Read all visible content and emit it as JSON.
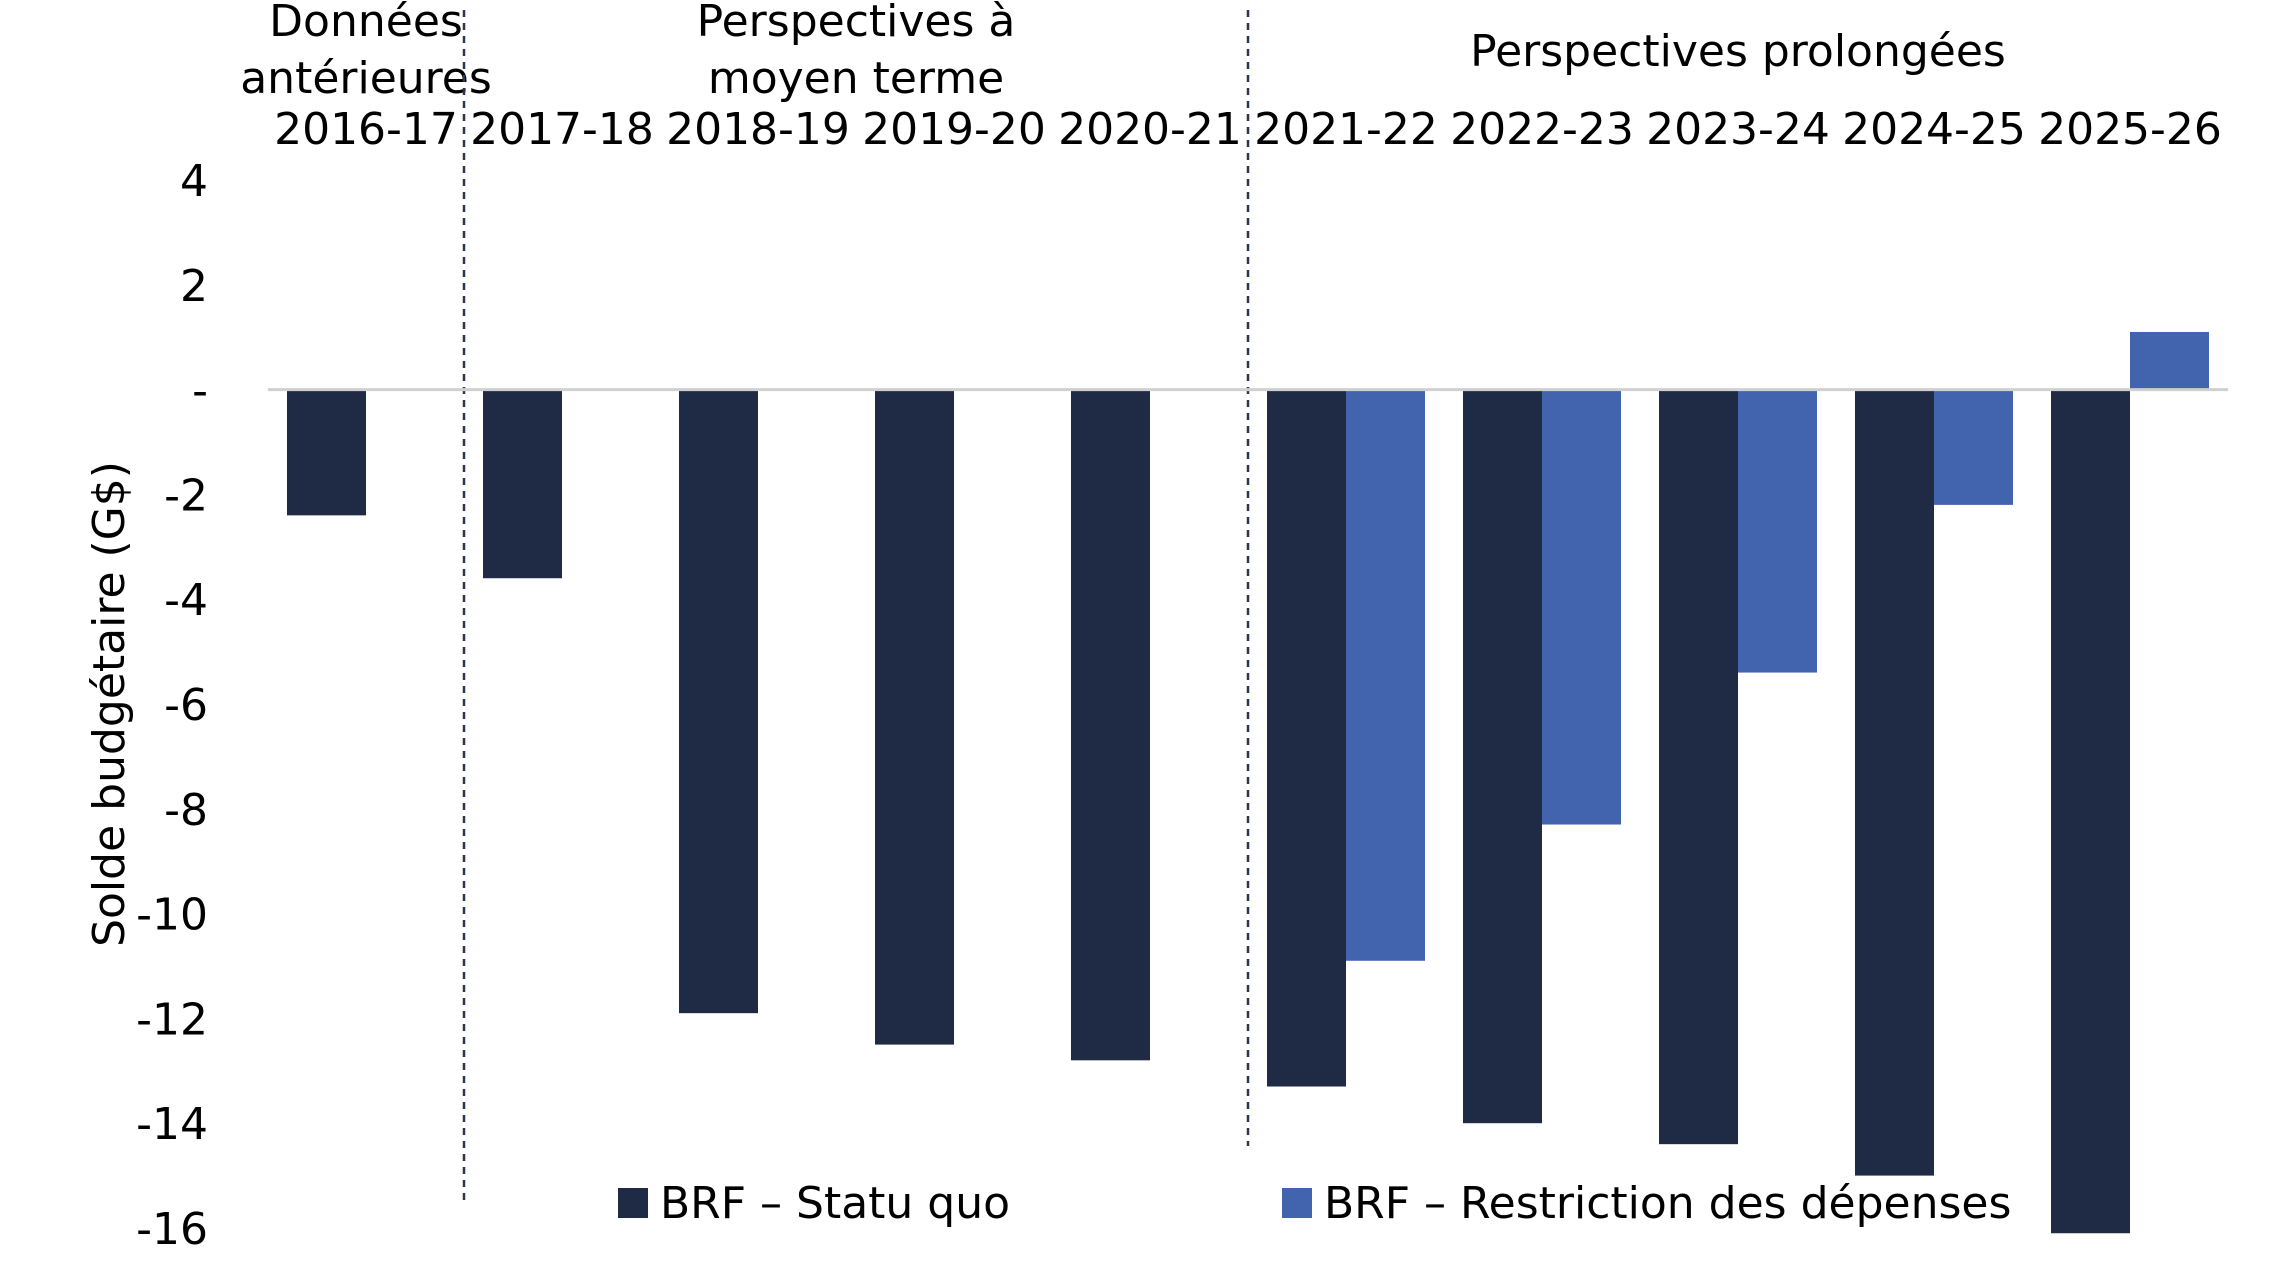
{
  "chart_data": {
    "type": "bar",
    "title": "",
    "xlabel": "",
    "ylabel": "Solde budgétaire (G$)",
    "ylim": [
      -16,
      4
    ],
    "yticks": [
      4,
      2,
      0,
      -2,
      -4,
      -6,
      -8,
      -10,
      -12,
      -14,
      -16
    ],
    "ytick_labels": [
      "4",
      "2",
      "-",
      "-2",
      "-4",
      "-6",
      "-8",
      "-10",
      "-12",
      "-14",
      "-16"
    ],
    "categories": [
      "2016-17",
      "2017-18",
      "2018-19",
      "2019-20",
      "2020-21",
      "2021-22",
      "2022-23",
      "2023-24",
      "2024-25",
      "2025-26"
    ],
    "series": [
      {
        "name": "BRF – Statu quo",
        "color": "#1f2b45",
        "values": [
          -2.4,
          -3.6,
          -11.9,
          -12.5,
          -12.8,
          -13.3,
          -14.0,
          -14.4,
          -15.0,
          -16.1
        ]
      },
      {
        "name": "BRF – Restriction des dépenses",
        "color": "#4263ad",
        "values": [
          null,
          null,
          null,
          null,
          null,
          -10.9,
          -8.3,
          -5.4,
          -2.2,
          1.1
        ]
      }
    ],
    "sections": [
      {
        "label": [
          "Données",
          "antérieures"
        ],
        "from": 0,
        "to": 0
      },
      {
        "label": [
          "Perspectives à",
          "moyen terme"
        ],
        "from": 1,
        "to": 4
      },
      {
        "label": [
          "Perspectives prolongées"
        ],
        "from": 5,
        "to": 9
      }
    ],
    "section_dividers_after": [
      0,
      4
    ],
    "legend_position": "bottom",
    "grid": false
  }
}
